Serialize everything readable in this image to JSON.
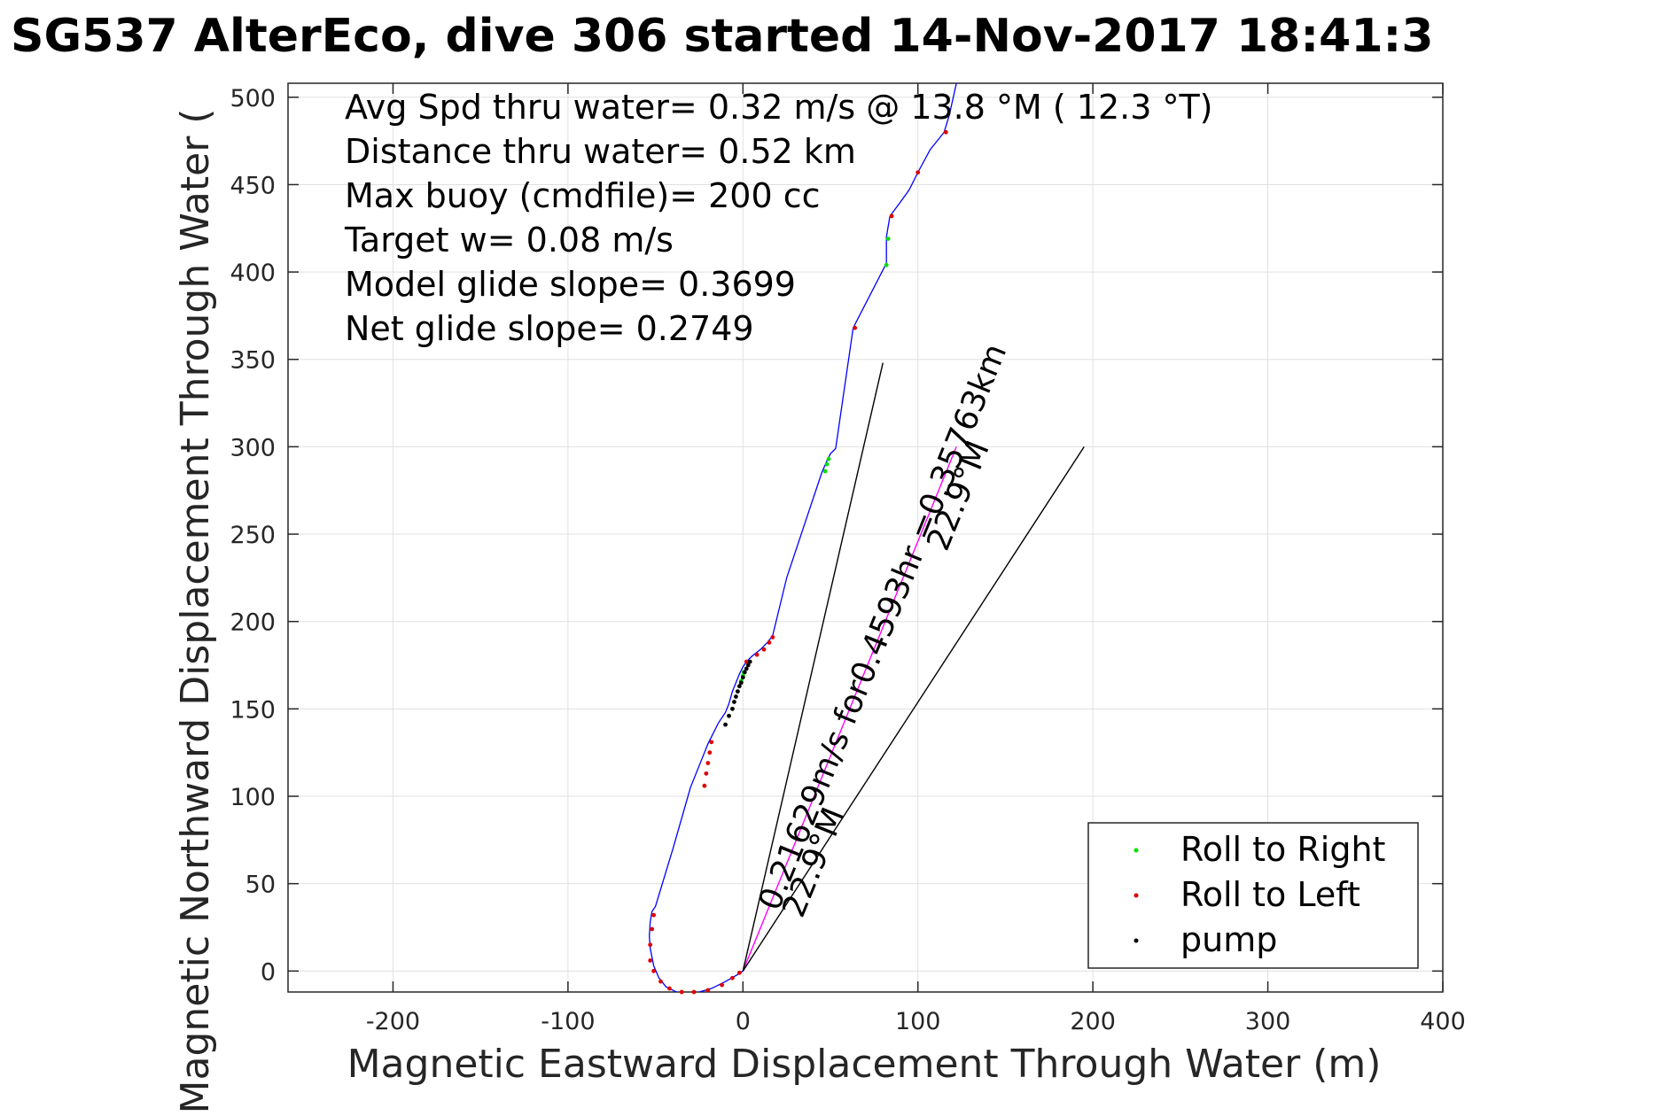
{
  "chart_data": {
    "type": "line",
    "title": "SG537 AlterEco, dive 306 started 14-Nov-2017 18:41:3",
    "xlabel": "Magnetic Eastward Displacement Through Water (m)",
    "ylabel": "Magnetic Northward Displacement Through Water (",
    "xlim": [
      -260,
      400
    ],
    "ylim": [
      -12,
      508
    ],
    "xticks": [
      -200,
      -100,
      0,
      100,
      200,
      300,
      400
    ],
    "yticks": [
      0,
      50,
      100,
      150,
      200,
      250,
      300,
      350,
      400,
      450,
      500
    ],
    "grid": true,
    "legend_position": "lower-right",
    "info_lines": [
      "Avg Spd thru water=  0.32 m/s @  13.8 °M ( 12.3 °T)",
      "Distance thru water=  0.52 km",
      "Max buoy (cmdfile)= 200 cc",
      "Target w= 0.08 m/s",
      "Model glide slope= 0.3699",
      "Net glide slope= 0.2749"
    ],
    "annotations": {
      "current_speed": "0.21629m/s for0.4593hr =0.35763km",
      "heading_1": "22.9°M",
      "heading_2": "22.9°M"
    },
    "colors": {
      "track": "#0000ff",
      "roll_right": "#00e000",
      "roll_left": "#e00000",
      "pump": "#000000",
      "current_vector": "#ff00ff"
    },
    "series": [
      {
        "name": "track",
        "x": [
          0,
          -3,
          -10,
          -18,
          -25,
          -32,
          -38,
          -44,
          -48,
          -51,
          -53,
          -53.5,
          -53,
          -52,
          -50,
          -40,
          -30,
          -22,
          -20,
          -18,
          -14,
          -10,
          -8,
          -6,
          -4,
          -2,
          0,
          2,
          5,
          10,
          14,
          17,
          25,
          35,
          45,
          48,
          50,
          53,
          63,
          82,
          82,
          84,
          90,
          95,
          100,
          107,
          115,
          118,
          122
        ],
        "y": [
          0,
          -2,
          -6,
          -10,
          -12,
          -13,
          -12,
          -9,
          -4,
          3,
          13,
          20,
          28,
          34,
          37,
          70,
          105,
          125,
          130,
          134,
          142,
          148,
          153,
          160,
          165,
          170,
          174,
          177,
          180,
          184,
          188,
          192,
          225,
          255,
          285,
          292,
          296,
          299,
          368,
          405,
          420,
          432,
          440,
          447,
          457,
          470,
          480,
          490,
          508
        ]
      },
      {
        "name": "Roll to Right",
        "x": [
          -1,
          0,
          0.5,
          47,
          48,
          49,
          82,
          83,
          85
        ],
        "y": [
          166,
          169,
          171,
          286,
          290,
          293,
          404,
          419,
          432
        ]
      },
      {
        "name": "Roll to Left",
        "x": [
          -2,
          -6,
          -12,
          -20,
          -28,
          -35,
          -42,
          -47,
          -51,
          -53,
          -53,
          -52,
          -51,
          -22,
          -21,
          -20,
          -19,
          -18,
          2,
          8,
          12,
          15,
          17,
          64,
          85,
          100,
          116
        ],
        "y": [
          -1,
          -4,
          -8,
          -11,
          -12,
          -12,
          -10,
          -6,
          0,
          6,
          15,
          24,
          32,
          106,
          113,
          119,
          125,
          131,
          177,
          181,
          184,
          188,
          191,
          368,
          432,
          457,
          480
        ]
      },
      {
        "name": "pump",
        "x": [
          -10,
          -8,
          -6,
          -5,
          -4,
          -3,
          -2,
          -1,
          0,
          1,
          2,
          3,
          4
        ],
        "y": [
          141,
          146,
          150,
          154,
          157,
          160,
          163,
          165,
          168,
          171,
          173,
          175,
          177
        ]
      }
    ],
    "vectors": [
      {
        "name": "current-vector",
        "x": [
          0,
          122
        ],
        "y": [
          0,
          300
        ]
      },
      {
        "name": "heading-line-1",
        "x": [
          0,
          80
        ],
        "y": [
          0,
          348
        ]
      },
      {
        "name": "heading-line-2",
        "x": [
          0,
          195
        ],
        "y": [
          0,
          300
        ]
      }
    ]
  }
}
